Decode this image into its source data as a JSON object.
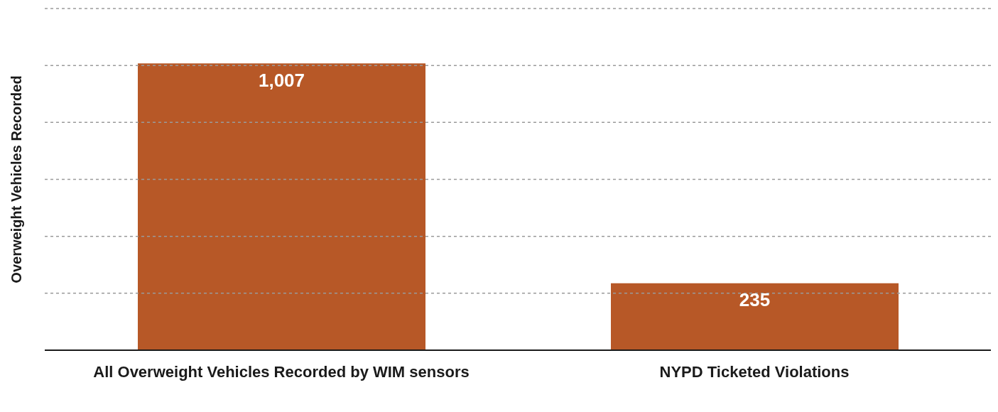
{
  "chart_data": {
    "type": "bar",
    "ylabel": "Overweight Vehicles Recorded",
    "categories": [
      "All Overweight Vehicles Recorded by WIM sensors",
      "NYPD Ticketed Violations"
    ],
    "values": [
      1007,
      235
    ],
    "value_labels": [
      "1,007",
      "235"
    ],
    "color": "#b75827",
    "ylim": [
      0,
      1200
    ],
    "yticks": [
      {
        "value": 0,
        "label": null
      },
      {
        "value": 200,
        "label": null
      },
      {
        "value": 400,
        "label": null
      },
      {
        "value": 600,
        "label": null
      },
      {
        "value": 800,
        "label": null
      },
      {
        "value": 1000,
        "label": null
      },
      {
        "value": 1200,
        "label": null
      }
    ],
    "grid": "y",
    "tick_labels": "x"
  }
}
